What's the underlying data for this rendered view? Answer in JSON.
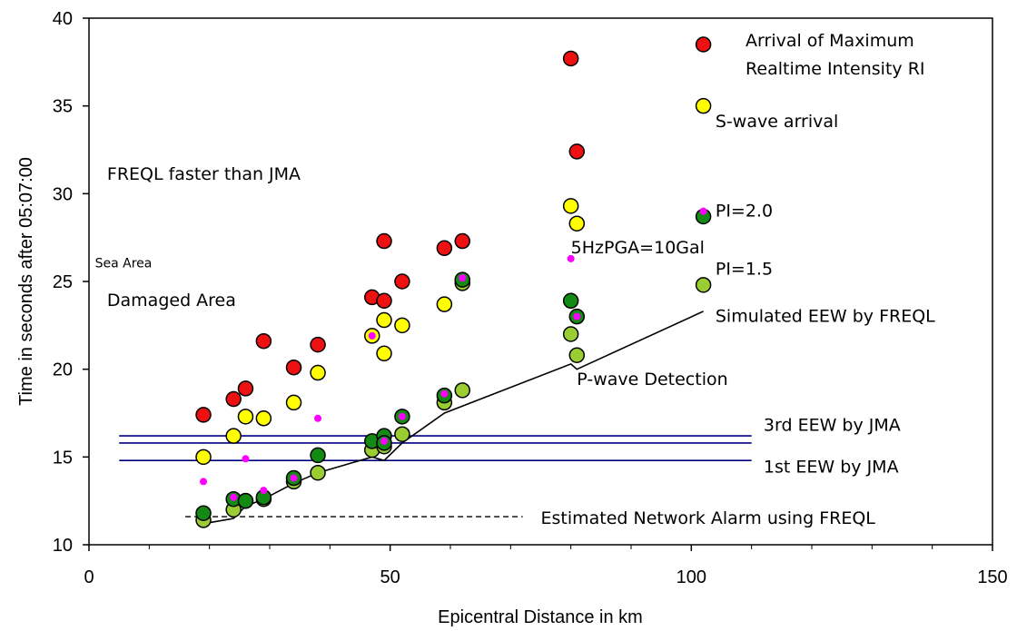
{
  "chart_data": {
    "type": "scatter",
    "xlabel": "Epicentral Distance in km",
    "ylabel": "Time in seconds after 05:07:00",
    "xlim": [
      0,
      150
    ],
    "ylim": [
      10,
      40
    ],
    "x_ticks": [
      "0",
      "50",
      "100",
      "150"
    ],
    "y_ticks": [
      "10",
      "15",
      "20",
      "25",
      "30",
      "35",
      "40"
    ],
    "grid": false,
    "colors": {
      "red": "#ee1111",
      "yellow": "#ffff00",
      "dark_green": "#138a13",
      "light_green": "#9acd32",
      "magenta": "#ff00ff",
      "jma_line": "#000080",
      "eew_line": "#000000"
    },
    "legend_points": [
      {
        "series": "red",
        "x": 102,
        "y": 38.5
      },
      {
        "series": "yellow",
        "x": 102,
        "y": 35
      },
      {
        "series": "dark_green",
        "x": 102,
        "y": 28.7
      },
      {
        "series": "magenta",
        "x": 102,
        "y": 29
      },
      {
        "series": "light_green",
        "x": 102,
        "y": 24.8
      }
    ],
    "series": [
      {
        "name": "Arrival of Maximum Realtime Intensity RI",
        "color": "red",
        "points": [
          [
            19,
            17.4
          ],
          [
            24,
            18.3
          ],
          [
            26,
            18.9
          ],
          [
            29,
            21.6
          ],
          [
            34,
            20.1
          ],
          [
            38,
            21.4
          ],
          [
            47,
            24.1
          ],
          [
            49,
            23.9
          ],
          [
            49,
            27.3
          ],
          [
            52,
            25
          ],
          [
            59,
            26.9
          ],
          [
            62,
            27.3
          ],
          [
            80,
            37.7
          ],
          [
            81,
            32.4
          ]
        ]
      },
      {
        "name": "S-wave arrival",
        "color": "yellow",
        "points": [
          [
            19,
            15
          ],
          [
            24,
            16.2
          ],
          [
            26,
            17.3
          ],
          [
            29,
            17.2
          ],
          [
            34,
            18.1
          ],
          [
            38,
            19.8
          ],
          [
            47,
            21.9
          ],
          [
            49,
            20.9
          ],
          [
            49,
            22.8
          ],
          [
            52,
            22.5
          ],
          [
            59,
            23.7
          ],
          [
            80,
            29.3
          ],
          [
            81,
            28.3
          ]
        ]
      },
      {
        "name": "PI=2.0",
        "color": "dark_green",
        "points": [
          [
            19,
            11.8
          ],
          [
            24,
            12.6
          ],
          [
            26,
            12.5
          ],
          [
            29,
            12.7
          ],
          [
            34,
            13.8
          ],
          [
            38,
            15.1
          ],
          [
            47,
            15.9
          ],
          [
            49,
            16.2
          ],
          [
            49,
            15.8
          ],
          [
            52,
            17.3
          ],
          [
            59,
            18.5
          ],
          [
            62,
            25.1
          ],
          [
            80,
            23.9
          ],
          [
            81,
            23
          ]
        ]
      },
      {
        "name": "PI=1.5",
        "color": "light_green",
        "points": [
          [
            19,
            11.4
          ],
          [
            24,
            12
          ],
          [
            26,
            12.5
          ],
          [
            29,
            12.6
          ],
          [
            34,
            13.6
          ],
          [
            38,
            14.1
          ],
          [
            47,
            15.4
          ],
          [
            49,
            15.6
          ],
          [
            52,
            16.3
          ],
          [
            59,
            18.1
          ],
          [
            62,
            18.8
          ],
          [
            62,
            24.9
          ],
          [
            80,
            22
          ],
          [
            81,
            20.8
          ]
        ]
      },
      {
        "name": "5HzPGA=10Gal",
        "color": "magenta",
        "points": [
          [
            19,
            13.6
          ],
          [
            24,
            12.7
          ],
          [
            26,
            14.9
          ],
          [
            29,
            13.1
          ],
          [
            34,
            13.8
          ],
          [
            38,
            17.2
          ],
          [
            47,
            21.9
          ],
          [
            49,
            15.9
          ],
          [
            52,
            17.3
          ],
          [
            59,
            18.6
          ],
          [
            62,
            25.2
          ],
          [
            80,
            26.3
          ],
          [
            81,
            23
          ]
        ]
      }
    ],
    "lines": [
      {
        "name": "3rd EEW by JMA",
        "color": "jma_line",
        "points": [
          [
            5,
            16.2
          ],
          [
            110,
            16.2
          ]
        ]
      },
      {
        "name": "",
        "color": "jma_line",
        "points": [
          [
            5,
            15.8
          ],
          [
            110,
            15.8
          ]
        ]
      },
      {
        "name": "1st EEW by JMA",
        "color": "jma_line",
        "points": [
          [
            5,
            14.8
          ],
          [
            110,
            14.8
          ]
        ]
      },
      {
        "name": "Simulated EEW by FREQL",
        "color": "eew_line",
        "points": [
          [
            19,
            11.2
          ],
          [
            24,
            11.5
          ],
          [
            26,
            12.2
          ],
          [
            29,
            12.6
          ],
          [
            34,
            13.5
          ],
          [
            38,
            14.1
          ],
          [
            47,
            15
          ],
          [
            49,
            14.8
          ],
          [
            52,
            15.8
          ],
          [
            59,
            17.5
          ],
          [
            80,
            20.3
          ],
          [
            81,
            20
          ],
          [
            102,
            23.3
          ]
        ]
      },
      {
        "name": "Estimated Network Alarm using FREQL",
        "color": "eew_line",
        "dashed": true,
        "points": [
          [
            16,
            11.6
          ],
          [
            72,
            11.6
          ]
        ]
      }
    ],
    "annotations": [
      {
        "id": "a1",
        "text": "Arrival of Maximum",
        "x": 109,
        "y": 38.4,
        "size": "normal"
      },
      {
        "id": "a2",
        "text": "Realtime Intensity RI",
        "x": 109,
        "y": 36.8,
        "size": "normal"
      },
      {
        "id": "a3",
        "text": "S-wave arrival",
        "x": 104,
        "y": 33.8,
        "size": "normal"
      },
      {
        "id": "a4",
        "text": "FREQL faster than JMA",
        "x": 3,
        "y": 30.8,
        "size": "normal"
      },
      {
        "id": "a5",
        "text": "PI=2.0",
        "x": 104,
        "y": 28.7,
        "size": "normal"
      },
      {
        "id": "a6",
        "text": "5HzPGA=10Gal",
        "x": 80,
        "y": 26.6,
        "size": "normal"
      },
      {
        "id": "a7",
        "text": "Sea Area",
        "x": 1,
        "y": 25.8,
        "size": "small"
      },
      {
        "id": "a8",
        "text": "PI=1.5",
        "x": 104,
        "y": 25.4,
        "size": "normal"
      },
      {
        "id": "a9",
        "text": "Damaged Area",
        "x": 3,
        "y": 23.6,
        "size": "normal"
      },
      {
        "id": "a10",
        "text": "Simulated EEW by FREQL",
        "x": 104,
        "y": 22.7,
        "size": "normal"
      },
      {
        "id": "a11",
        "text": "P-wave Detection",
        "x": 81,
        "y": 19.1,
        "size": "normal"
      },
      {
        "id": "a12",
        "text": "3rd EEW by JMA",
        "x": 112,
        "y": 16.5,
        "size": "normal"
      },
      {
        "id": "a13",
        "text": "1st EEW by JMA",
        "x": 112,
        "y": 14.1,
        "size": "normal"
      },
      {
        "id": "a14",
        "text": "Estimated Network Alarm using FREQL",
        "x": 75,
        "y": 11.2,
        "size": "normal"
      }
    ]
  }
}
